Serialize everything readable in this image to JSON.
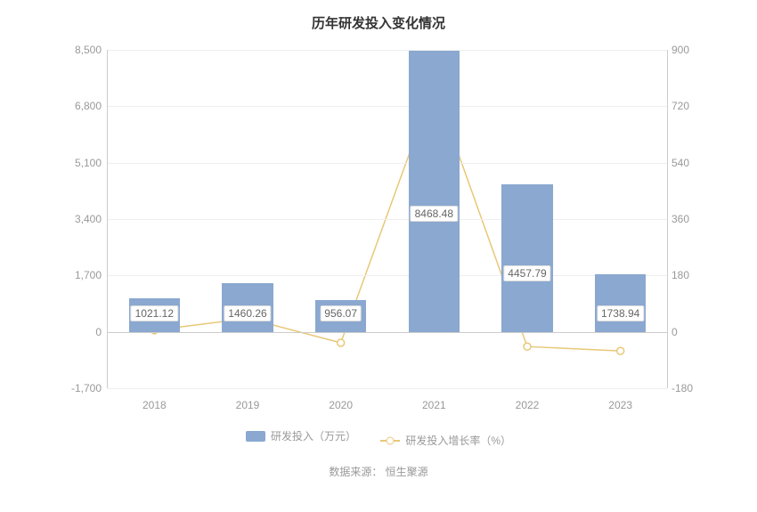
{
  "chart": {
    "type": "bar+line",
    "title": "历年研发投入变化情况",
    "categories": [
      "2018",
      "2019",
      "2020",
      "2021",
      "2022",
      "2023"
    ],
    "bar_series": {
      "name": "研发投入（万元）",
      "values": [
        1021.12,
        1460.26,
        956.07,
        8468.48,
        4457.79,
        1738.94
      ],
      "color": "#8aa8d0",
      "bar_width_ratio": 0.55
    },
    "line_series": {
      "name": "研发投入增长率（%）",
      "values": [
        5,
        43,
        -35,
        786,
        -47,
        -61
      ],
      "color": "#e8c878",
      "marker_fill": "#ffffff",
      "marker_size": 4
    },
    "y_left": {
      "min": -1700,
      "max": 8500,
      "step": 1700
    },
    "y_right": {
      "min": -180,
      "max": 900,
      "step": 180
    },
    "grid_color": "#eeeeee",
    "axis_color": "#cccccc",
    "background_color": "#ffffff",
    "label_fontsize": 12,
    "title_fontsize": 15,
    "label_color": "#999999",
    "bar_label_color": "#666666"
  },
  "legend": {
    "bar_label": "研发投入（万元）",
    "line_label": "研发投入增长率（%）"
  },
  "source_prefix": "数据来源：",
  "source_name": "恒生聚源"
}
